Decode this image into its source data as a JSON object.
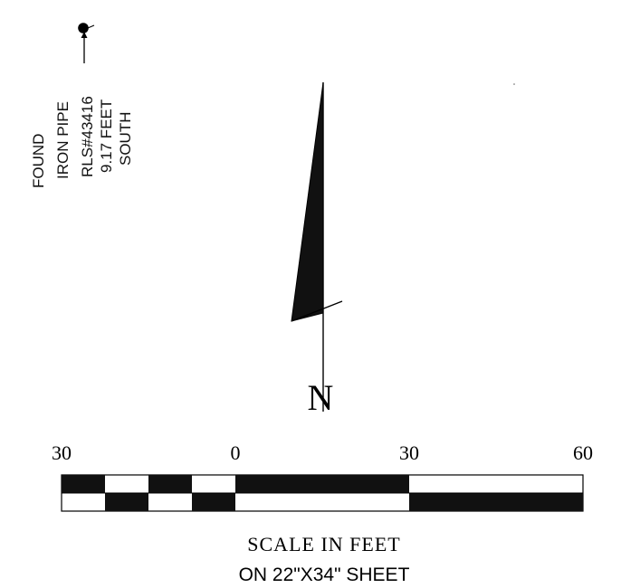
{
  "monument": {
    "lines": [
      "FOUND",
      "IRON PIPE",
      "RLS#43416",
      "9.17 FEET",
      "SOUTH"
    ],
    "icon": "found-monument-dot"
  },
  "north_arrow": {
    "letter": "N",
    "icon": "north-arrow-icon"
  },
  "scale_bar": {
    "tick_labels": [
      "30",
      "0",
      "30",
      "60"
    ],
    "title": "SCALE IN FEET",
    "subtitle": "ON 22\"X34\" SHEET",
    "fill_color": "#111111"
  }
}
